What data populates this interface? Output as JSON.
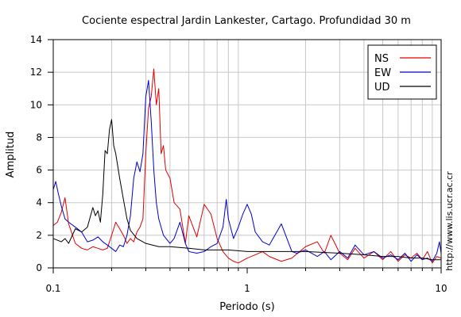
{
  "chart_data": {
    "type": "line",
    "title": "Cociente espectral Jardin Lankester, Cartago. Profundidad 30 m",
    "xlabel": "Periodo (s)",
    "ylabel": "Amplitud",
    "xscale": "log",
    "xlim": [
      0.1,
      10
    ],
    "ylim": [
      0,
      14
    ],
    "x_tick_labels": [
      "0.1",
      "1",
      "10"
    ],
    "y_ticks": [
      0,
      2,
      4,
      6,
      8,
      10,
      12,
      14
    ],
    "grid": true,
    "legend_position": "top-right",
    "side_text": "http://www.lis.ucr.ac.cr",
    "series": [
      {
        "name": "NS",
        "color": "#e00000",
        "x": [
          0.1,
          0.105,
          0.11,
          0.115,
          0.12,
          0.13,
          0.14,
          0.15,
          0.16,
          0.17,
          0.18,
          0.19,
          0.2,
          0.21,
          0.22,
          0.23,
          0.24,
          0.25,
          0.26,
          0.27,
          0.28,
          0.29,
          0.3,
          0.31,
          0.32,
          0.33,
          0.34,
          0.35,
          0.36,
          0.37,
          0.38,
          0.4,
          0.42,
          0.45,
          0.48,
          0.5,
          0.55,
          0.6,
          0.65,
          0.7,
          0.75,
          0.8,
          0.85,
          0.9,
          1.0,
          1.1,
          1.2,
          1.3,
          1.5,
          1.7,
          2.0,
          2.3,
          2.5,
          2.7,
          3.0,
          3.3,
          3.6,
          4.0,
          4.5,
          5.0,
          5.5,
          6.0,
          6.5,
          7.0,
          7.5,
          8.0,
          8.5,
          9.0,
          9.5,
          10.0
        ],
        "values": [
          2.6,
          2.8,
          3.4,
          4.3,
          2.7,
          1.5,
          1.2,
          1.1,
          1.3,
          1.2,
          1.1,
          1.2,
          2.0,
          2.8,
          2.4,
          2.0,
          1.5,
          1.8,
          1.6,
          2.2,
          2.5,
          3.0,
          7.0,
          9.8,
          10.5,
          12.2,
          10.0,
          11.0,
          7.0,
          7.5,
          6.0,
          5.5,
          4.0,
          3.6,
          1.5,
          3.2,
          1.9,
          3.9,
          3.3,
          1.8,
          1.0,
          0.6,
          0.4,
          0.3,
          0.6,
          0.8,
          1.0,
          0.7,
          0.4,
          0.6,
          1.3,
          1.6,
          0.9,
          2.0,
          0.9,
          0.5,
          1.2,
          0.6,
          1.0,
          0.5,
          1.0,
          0.4,
          0.8,
          0.6,
          0.9,
          0.5,
          1.0,
          0.3,
          0.7,
          0.6
        ]
      },
      {
        "name": "EW",
        "color": "#0000cc",
        "x": [
          0.1,
          0.103,
          0.106,
          0.11,
          0.115,
          0.12,
          0.13,
          0.14,
          0.15,
          0.16,
          0.17,
          0.18,
          0.19,
          0.2,
          0.21,
          0.22,
          0.23,
          0.24,
          0.25,
          0.26,
          0.27,
          0.28,
          0.29,
          0.3,
          0.31,
          0.32,
          0.33,
          0.34,
          0.35,
          0.37,
          0.4,
          0.42,
          0.45,
          0.48,
          0.5,
          0.55,
          0.6,
          0.65,
          0.7,
          0.75,
          0.78,
          0.8,
          0.85,
          0.9,
          0.95,
          1.0,
          1.05,
          1.1,
          1.2,
          1.3,
          1.5,
          1.7,
          1.8,
          2.0,
          2.3,
          2.5,
          2.7,
          3.0,
          3.3,
          3.6,
          4.0,
          4.5,
          5.0,
          5.5,
          6.0,
          6.5,
          7.0,
          7.5,
          8.0,
          8.5,
          9.0,
          9.5,
          9.8,
          10.0
        ],
        "values": [
          4.8,
          5.3,
          4.6,
          3.8,
          3.0,
          2.8,
          2.5,
          2.2,
          1.6,
          1.7,
          1.9,
          1.6,
          1.4,
          1.2,
          1.0,
          1.4,
          1.3,
          2.0,
          3.2,
          5.5,
          6.5,
          5.9,
          7.0,
          10.5,
          11.5,
          9.0,
          6.0,
          4.0,
          3.0,
          2.0,
          1.5,
          1.8,
          2.8,
          1.5,
          1.0,
          0.9,
          1.0,
          1.3,
          1.5,
          2.5,
          4.2,
          3.0,
          1.8,
          2.5,
          3.3,
          3.9,
          3.3,
          2.2,
          1.6,
          1.4,
          2.7,
          1.0,
          0.9,
          1.1,
          0.7,
          1.0,
          0.5,
          1.0,
          0.6,
          1.4,
          0.8,
          1.0,
          0.6,
          0.8,
          0.5,
          0.9,
          0.4,
          0.8,
          0.5,
          0.6,
          0.4,
          0.9,
          1.6,
          0.9
        ]
      },
      {
        "name": "UD",
        "color": "#000000",
        "x": [
          0.1,
          0.105,
          0.11,
          0.115,
          0.12,
          0.13,
          0.14,
          0.15,
          0.16,
          0.165,
          0.17,
          0.175,
          0.18,
          0.185,
          0.19,
          0.195,
          0.2,
          0.205,
          0.21,
          0.22,
          0.23,
          0.24,
          0.25,
          0.27,
          0.3,
          0.35,
          0.4,
          0.5,
          0.6,
          0.7,
          0.8,
          1.0,
          1.5,
          2.0,
          3.0,
          4.0,
          5.0,
          6.0,
          7.0,
          8.0,
          9.0,
          10.0
        ],
        "values": [
          1.8,
          1.7,
          1.6,
          1.8,
          1.5,
          2.4,
          2.2,
          2.5,
          3.7,
          3.2,
          3.5,
          2.8,
          4.5,
          7.2,
          7.0,
          8.5,
          9.1,
          7.5,
          7.0,
          5.5,
          4.2,
          3.0,
          2.3,
          1.8,
          1.5,
          1.3,
          1.3,
          1.2,
          1.1,
          1.1,
          1.1,
          1.0,
          1.0,
          1.0,
          0.9,
          0.8,
          0.7,
          0.7,
          0.6,
          0.6,
          0.5,
          0.5
        ]
      }
    ]
  }
}
